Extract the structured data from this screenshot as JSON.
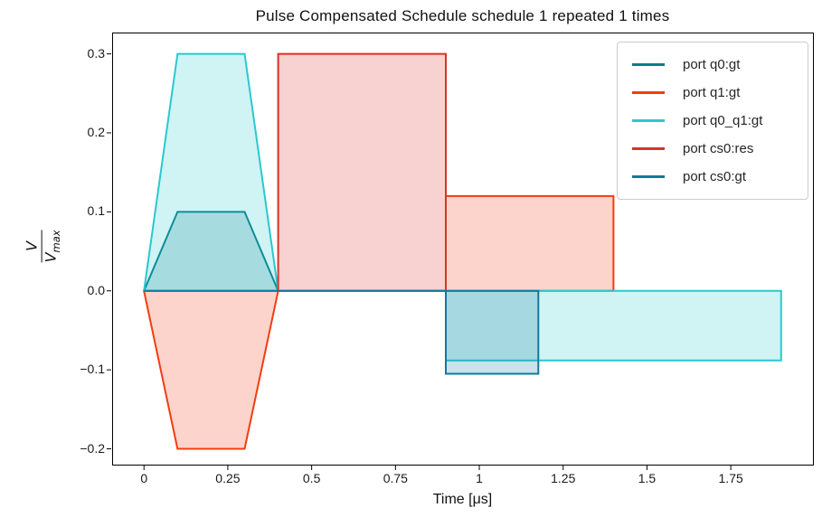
{
  "title": "Pulse Compensated Schedule schedule 1 repeated 1 times",
  "axes": {
    "xlabel": "Time [μs]",
    "ylabel_num": "V",
    "ylabel_den_base": "V",
    "ylabel_den_sub": "max"
  },
  "chart_data": {
    "type": "area",
    "title": "Pulse Compensated Schedule schedule 1 repeated 1 times",
    "xlabel": "Time [μs]",
    "ylabel": "V/V_max",
    "xlim": [
      -0.095,
      1.995
    ],
    "ylim": [
      -0.22,
      0.327
    ],
    "grid": false,
    "legend_position": "upper right",
    "fill_alpha": 0.22,
    "line_width": 2,
    "xticks": [
      {
        "v": 0,
        "label": "0"
      },
      {
        "v": 0.25,
        "label": "0.25"
      },
      {
        "v": 0.5,
        "label": "0.5"
      },
      {
        "v": 0.75,
        "label": "0.75"
      },
      {
        "v": 1,
        "label": "1"
      },
      {
        "v": 1.25,
        "label": "1.25"
      },
      {
        "v": 1.5,
        "label": "1.5"
      },
      {
        "v": 1.75,
        "label": "1.75"
      }
    ],
    "yticks": [
      {
        "v": 0.3,
        "label": "0.3"
      },
      {
        "v": 0.2,
        "label": "0.2"
      },
      {
        "v": 0.1,
        "label": "0.1"
      },
      {
        "v": 0.0,
        "label": "0.0"
      },
      {
        "v": -0.1,
        "label": "−0.1"
      },
      {
        "v": -0.2,
        "label": "−0.2"
      }
    ],
    "series": [
      {
        "name": "port q0:gt",
        "color": "#087d8c",
        "polygons": [
          [
            [
              0,
              0
            ],
            [
              0.1,
              0.1
            ],
            [
              0.3,
              0.1
            ],
            [
              0.4,
              0
            ]
          ]
        ],
        "lines": []
      },
      {
        "name": "port q1:gt",
        "color": "#f23d10",
        "polygons": [
          [
            [
              0,
              0
            ],
            [
              0.1,
              -0.2
            ],
            [
              0.3,
              -0.2
            ],
            [
              0.4,
              0
            ]
          ],
          [
            [
              0.9,
              0
            ],
            [
              0.9,
              0.12
            ],
            [
              1.4,
              0.12
            ],
            [
              1.4,
              0
            ]
          ]
        ],
        "lines": [
          [
            [
              0.4,
              0
            ],
            [
              0.9,
              0
            ]
          ]
        ]
      },
      {
        "name": "port q0_q1:gt",
        "color": "#2bc8cf",
        "polygons": [
          [
            [
              0,
              0
            ],
            [
              0.1,
              0.3
            ],
            [
              0.3,
              0.3
            ],
            [
              0.4,
              0
            ]
          ],
          [
            [
              0.9,
              0
            ],
            [
              1.9,
              0
            ],
            [
              1.9,
              -0.088
            ],
            [
              0.9,
              -0.088
            ]
          ]
        ],
        "lines": [
          [
            [
              0.4,
              0
            ],
            [
              0.9,
              0
            ]
          ]
        ]
      },
      {
        "name": "port cs0:res",
        "color": "#d93327",
        "polygons": [
          [
            [
              0.4,
              0
            ],
            [
              0.4,
              0.3
            ],
            [
              0.9,
              0.3
            ],
            [
              0.9,
              0
            ]
          ]
        ],
        "lines": []
      },
      {
        "name": "port cs0:gt",
        "color": "#0f7b9e",
        "polygons": [
          [
            [
              0.9,
              0
            ],
            [
              1.176,
              0
            ],
            [
              1.176,
              -0.105
            ],
            [
              0.9,
              -0.105
            ]
          ]
        ],
        "lines": [
          [
            [
              0,
              0
            ],
            [
              0.9,
              0
            ]
          ]
        ]
      }
    ]
  }
}
